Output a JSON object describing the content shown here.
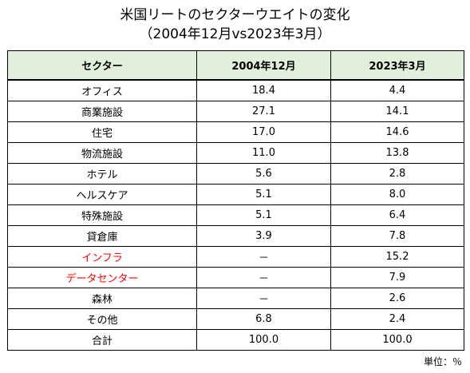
{
  "title_line1": "米国リートのセクターウエイトの変化",
  "title_line2": "（2004年12月vs2023年3月）",
  "table": {
    "headers": [
      "セクター",
      "2004年12月",
      "2023年3月"
    ],
    "rows": [
      {
        "sector": "オフィス",
        "y2004": "18.4",
        "y2023": "4.4",
        "highlight": false
      },
      {
        "sector": "商業施設",
        "y2004": "27.1",
        "y2023": "14.1",
        "highlight": false
      },
      {
        "sector": "住宅",
        "y2004": "17.0",
        "y2023": "14.6",
        "highlight": false
      },
      {
        "sector": "物流施設",
        "y2004": "11.0",
        "y2023": "13.8",
        "highlight": false
      },
      {
        "sector": "ホテル",
        "y2004": "5.6",
        "y2023": "2.8",
        "highlight": false
      },
      {
        "sector": "ヘルスケア",
        "y2004": "5.1",
        "y2023": "8.0",
        "highlight": false
      },
      {
        "sector": "特殊施設",
        "y2004": "5.1",
        "y2023": "6.4",
        "highlight": false
      },
      {
        "sector": "貸倉庫",
        "y2004": "3.9",
        "y2023": "7.8",
        "highlight": false
      },
      {
        "sector": "インフラ",
        "y2004": "－",
        "y2023": "15.2",
        "highlight": true
      },
      {
        "sector": "データセンター",
        "y2004": "－",
        "y2023": "7.9",
        "highlight": true
      },
      {
        "sector": "森林",
        "y2004": "－",
        "y2023": "2.6",
        "highlight": false
      },
      {
        "sector": "その他",
        "y2004": "6.8",
        "y2023": "2.4",
        "highlight": false
      },
      {
        "sector": "合計",
        "y2004": "100.0",
        "y2023": "100.0",
        "highlight": false
      }
    ]
  },
  "unit_note": "単位：％",
  "colors": {
    "header_bg": "#e2efda",
    "highlight_text": "#ff0000",
    "border": "#000000"
  }
}
